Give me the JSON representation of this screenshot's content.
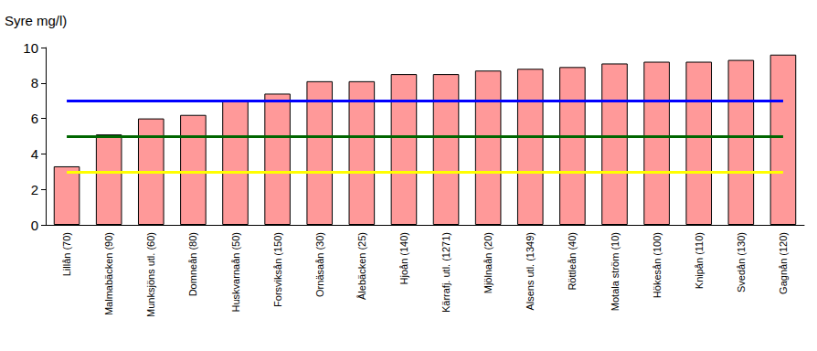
{
  "chart_data": {
    "type": "bar",
    "ylabel": "Syre mg/l)",
    "categories": [
      "Lillån (70)",
      "Malmabäcken (90)",
      "Munksjöns utl. (60)",
      "Domneån (80)",
      "Huskvarnaån (50)",
      "Forsviksån (150)",
      "Ornäsaån (30)",
      "Ålebäcken (25)",
      "Hjoån (140)",
      "Kärrafj. utl. (1271)",
      "Mjölnaån (20)",
      "Alsens utl. (1349)",
      "Röttleån (40)",
      "Motala ström (10)",
      "Hökesån (100)",
      "Knipån (110)",
      "Svedån (130)",
      "Gagnån (120)"
    ],
    "values": [
      3.3,
      5.1,
      6.0,
      6.2,
      7.0,
      7.4,
      8.1,
      8.1,
      8.5,
      8.5,
      8.7,
      8.8,
      8.9,
      9.1,
      9.2,
      9.2,
      9.3,
      9.6
    ],
    "color": "#ff9999",
    "reference_lines": [
      {
        "value": 7,
        "color": "#0000ff"
      },
      {
        "value": 5,
        "color": "#006600"
      },
      {
        "value": 3,
        "color": "#ffff00"
      }
    ],
    "ylim": [
      0,
      10
    ],
    "yticks": [
      0,
      2,
      4,
      6,
      8,
      10
    ],
    "grid": false
  }
}
